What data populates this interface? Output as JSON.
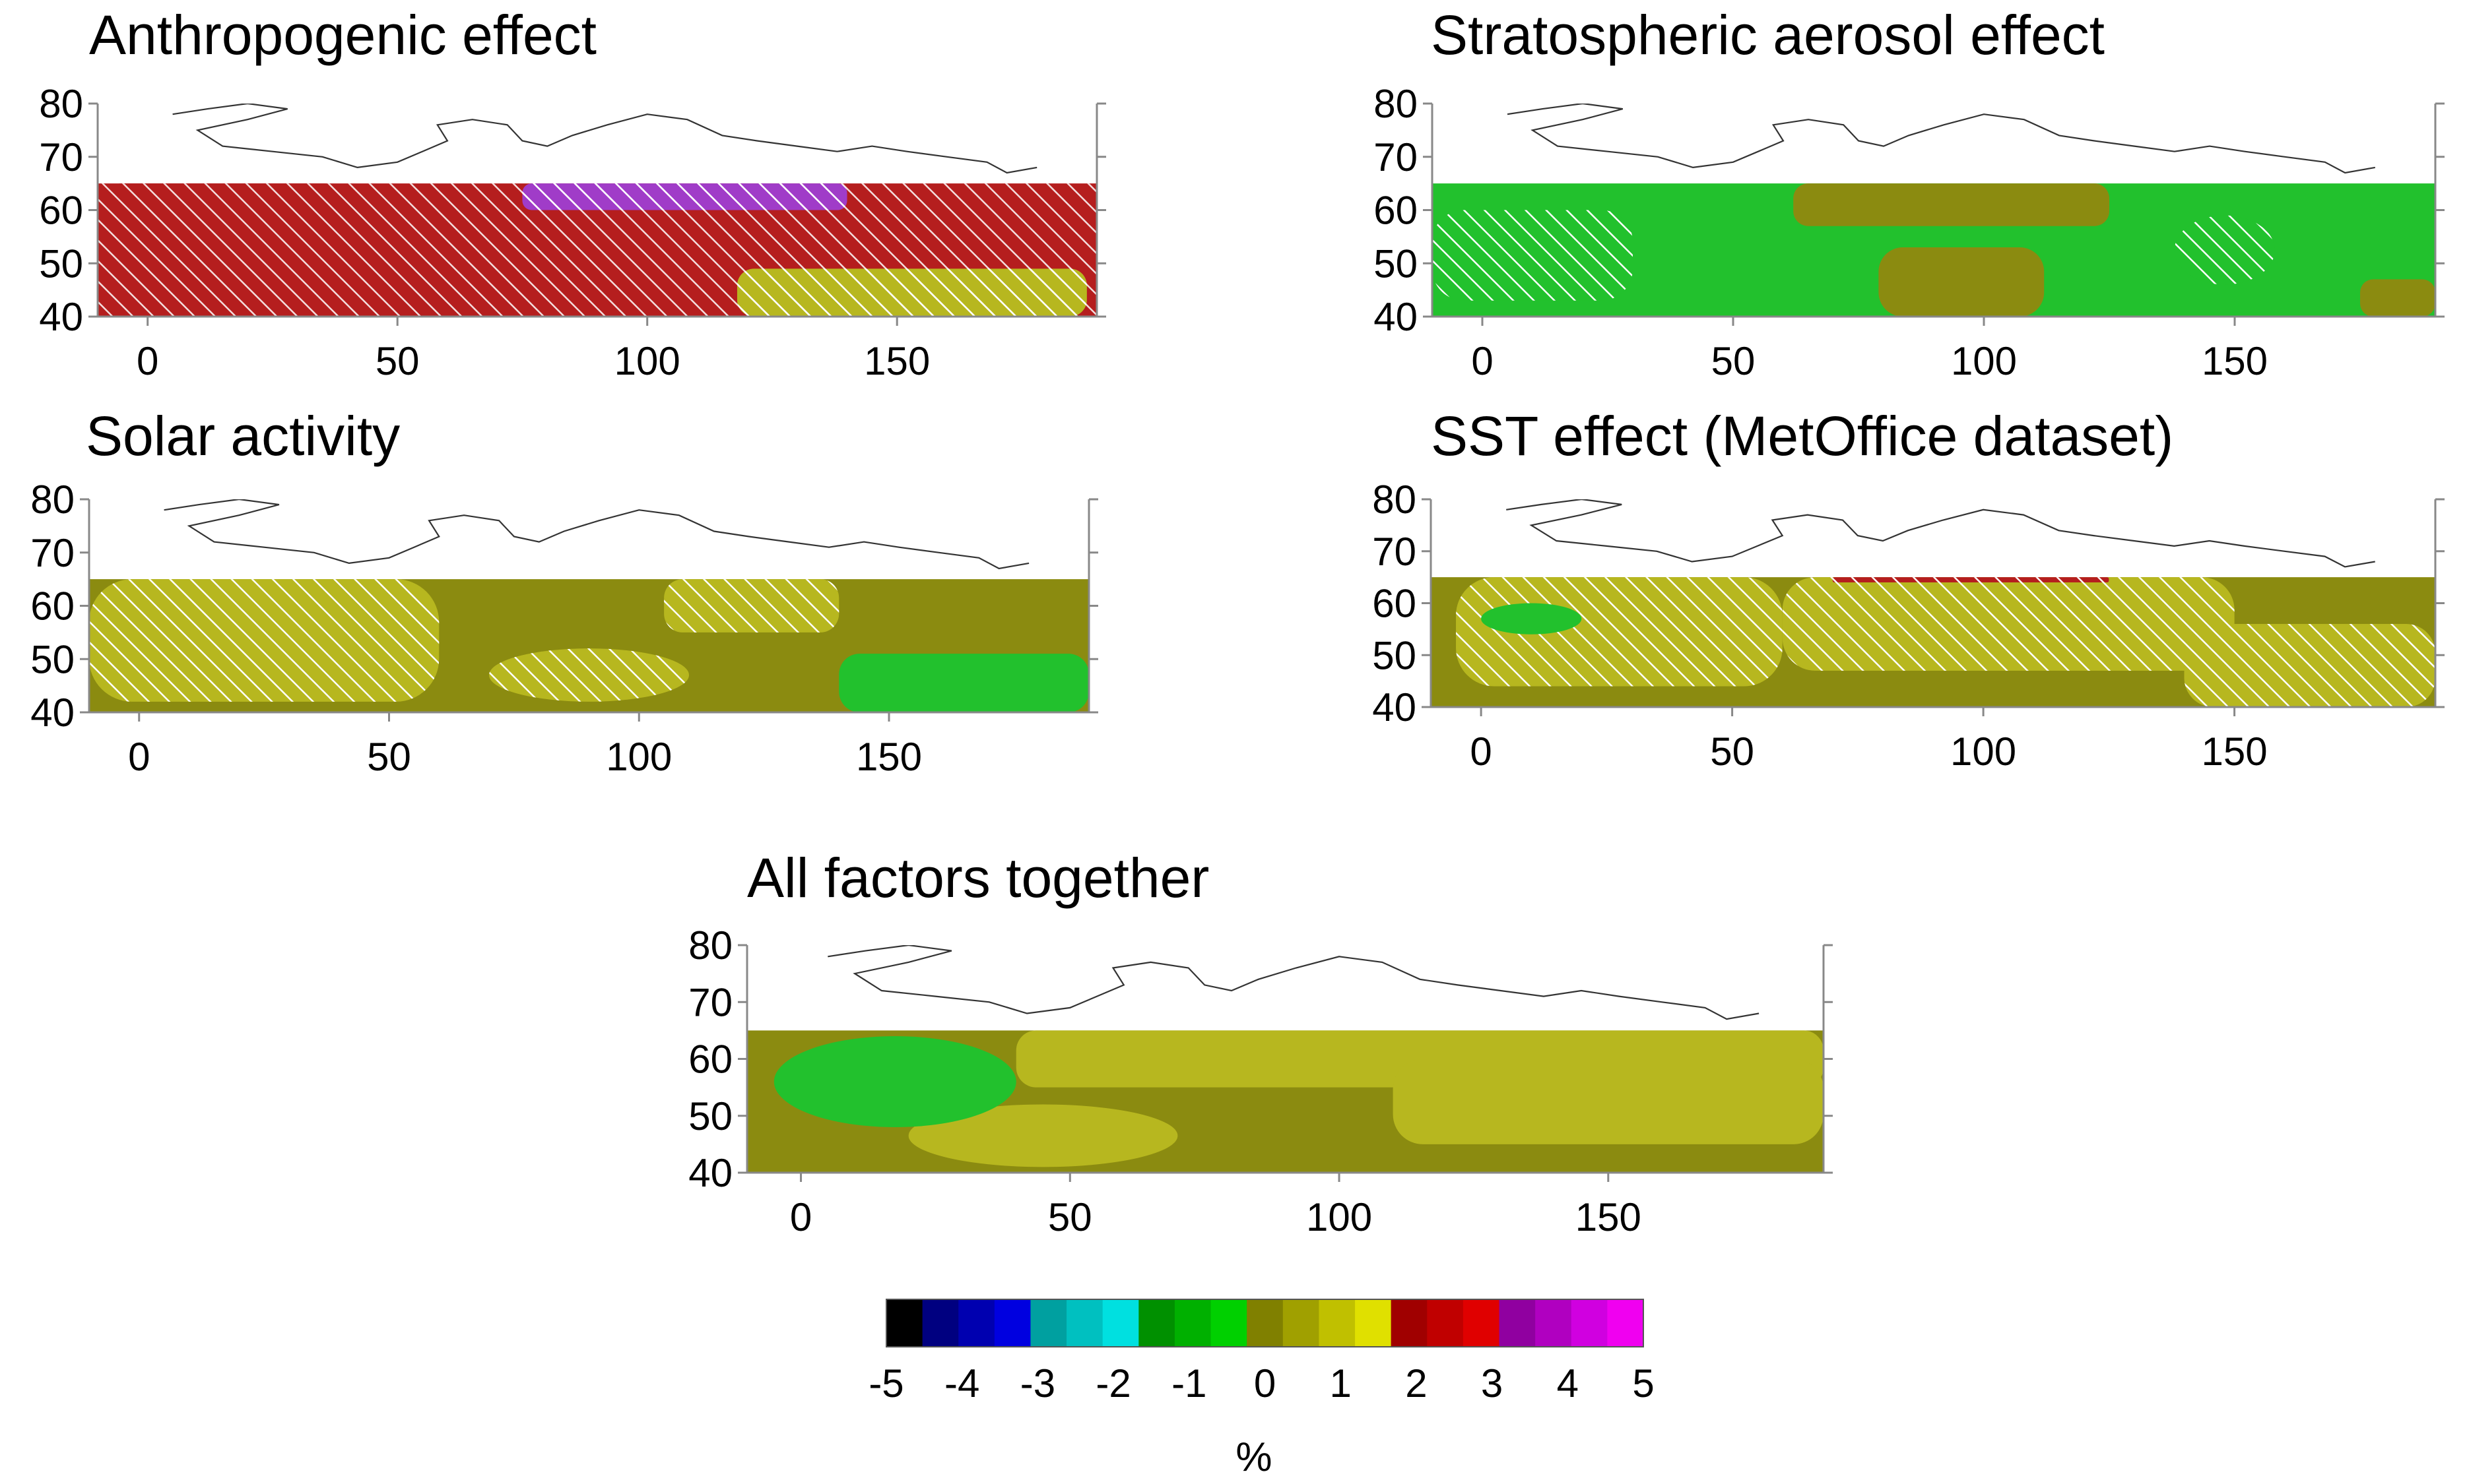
{
  "chart_data": [
    {
      "type": "heatmap",
      "title": "Anthropogenic effect",
      "xlim": [
        -10,
        190
      ],
      "ylim": [
        40,
        80
      ],
      "x_ticks": [
        0,
        50,
        100,
        150
      ],
      "y_ticks": [
        40,
        50,
        60,
        70,
        80
      ],
      "data_lat_max": 65,
      "background_value": 2.5,
      "regions": [
        {
          "value": 2.5,
          "lon": [
            -10,
            40
          ],
          "lat": [
            52,
            65
          ],
          "significant": false
        },
        {
          "value": 3.5,
          "lon": [
            75,
            140
          ],
          "lat": [
            60,
            65
          ],
          "significant": true
        },
        {
          "value": 1.5,
          "lon": [
            118,
            188
          ],
          "lat": [
            40,
            49
          ],
          "significant": true
        },
        {
          "value": 2.5,
          "lon": [
            160,
            170
          ],
          "lat": [
            53,
            57
          ],
          "significant": false
        }
      ],
      "hatched_area": "most of domain",
      "xlabel": "",
      "ylabel": ""
    },
    {
      "type": "heatmap",
      "title": "Stratospheric aerosol effect",
      "xlim": [
        -10,
        190
      ],
      "ylim": [
        40,
        80
      ],
      "x_ticks": [
        0,
        50,
        100,
        150
      ],
      "y_ticks": [
        40,
        50,
        60,
        70,
        80
      ],
      "data_lat_max": 65,
      "background_value": -0.5,
      "regions": [
        {
          "value": 0.5,
          "lon": [
            62,
            125
          ],
          "lat": [
            57,
            65
          ],
          "significant": false
        },
        {
          "value": 0.5,
          "lon": [
            79,
            112
          ],
          "lat": [
            40,
            53
          ],
          "significant": false
        },
        {
          "value": 0.5,
          "lon": [
            175,
            190
          ],
          "lat": [
            40,
            47
          ],
          "significant": false
        },
        {
          "value": -0.5,
          "lon": [
            -10,
            30
          ],
          "lat": [
            43,
            60
          ],
          "significant": true
        },
        {
          "value": -0.5,
          "lon": [
            138,
            158
          ],
          "lat": [
            46,
            59
          ],
          "significant": true
        }
      ],
      "xlabel": "",
      "ylabel": ""
    },
    {
      "type": "heatmap",
      "title": "Solar activity",
      "xlim": [
        -10,
        190
      ],
      "ylim": [
        40,
        80
      ],
      "x_ticks": [
        0,
        50,
        100,
        150
      ],
      "y_ticks": [
        40,
        50,
        60,
        70,
        80
      ],
      "data_lat_max": 65,
      "background_value": 0.5,
      "regions": [
        {
          "value": 1.5,
          "lon": [
            -10,
            60
          ],
          "lat": [
            42,
            65
          ],
          "significant": true
        },
        {
          "value": 1.5,
          "lon": [
            70,
            110
          ],
          "lat": [
            42,
            52
          ],
          "significant": true
        },
        {
          "value": 1.5,
          "lon": [
            105,
            140
          ],
          "lat": [
            55,
            65
          ],
          "significant": true
        },
        {
          "value": -0.5,
          "lon": [
            140,
            190
          ],
          "lat": [
            40,
            51
          ],
          "significant": false
        }
      ],
      "xlabel": "",
      "ylabel": ""
    },
    {
      "type": "heatmap",
      "title": "SST effect (MetOffice dataset)",
      "xlim": [
        -10,
        190
      ],
      "ylim": [
        40,
        80
      ],
      "x_ticks": [
        0,
        50,
        100,
        150
      ],
      "y_ticks": [
        40,
        50,
        60,
        70,
        80
      ],
      "data_lat_max": 65,
      "background_value": 0.5,
      "regions": [
        {
          "value": 1.5,
          "lon": [
            -5,
            60
          ],
          "lat": [
            44,
            65
          ],
          "significant": true
        },
        {
          "value": 1.5,
          "lon": [
            60,
            150
          ],
          "lat": [
            47,
            65
          ],
          "significant": true
        },
        {
          "value": -0.5,
          "lon": [
            0,
            20
          ],
          "lat": [
            54,
            60
          ],
          "significant": false
        },
        {
          "value": 2.5,
          "lon": [
            70,
            125
          ],
          "lat": [
            64,
            65
          ],
          "significant": true
        },
        {
          "value": 1.5,
          "lon": [
            140,
            190
          ],
          "lat": [
            40,
            56
          ],
          "significant": true
        }
      ],
      "xlabel": "",
      "ylabel": ""
    },
    {
      "type": "heatmap",
      "title": "All factors together",
      "xlim": [
        -10,
        190
      ],
      "ylim": [
        40,
        80
      ],
      "x_ticks": [
        0,
        50,
        100,
        150
      ],
      "y_ticks": [
        40,
        50,
        60,
        70,
        80
      ],
      "data_lat_max": 65,
      "background_value": 0.5,
      "regions": [
        {
          "value": 1.5,
          "lon": [
            40,
            190
          ],
          "lat": [
            55,
            65
          ],
          "significant": false
        },
        {
          "value": 1.5,
          "lon": [
            20,
            70
          ],
          "lat": [
            41,
            52
          ],
          "significant": false
        },
        {
          "value": 1.5,
          "lon": [
            110,
            190
          ],
          "lat": [
            45,
            60
          ],
          "significant": false
        },
        {
          "value": -0.5,
          "lon": [
            -5,
            40
          ],
          "lat": [
            48,
            64
          ],
          "significant": false
        }
      ],
      "xlabel": "",
      "ylabel": ""
    }
  ],
  "colorbar": {
    "label": "%",
    "tick_labels": [
      "-5",
      "-4",
      "-3",
      "-2",
      "-1",
      "0",
      "1",
      "2",
      "3",
      "4",
      "5"
    ],
    "range": [
      -5,
      5
    ],
    "step": 0.5,
    "colors": [
      "#000000",
      "#000080",
      "#0000b0",
      "#0000e0",
      "#00a0a0",
      "#00c0c0",
      "#00e0e0",
      "#009000",
      "#00b000",
      "#00d000",
      "#808000",
      "#a0a000",
      "#c0c000",
      "#e0e000",
      "#a00000",
      "#c00000",
      "#e00000",
      "#9000a0",
      "#b000c0",
      "#d000e0",
      "#f000f0"
    ]
  },
  "value_colors": {
    "-0.5": "#22c12d",
    "0.5": "#8b8b10",
    "1.5": "#b7b71f",
    "2.5": "#b51e1e",
    "3.5": "#a03cc8"
  }
}
